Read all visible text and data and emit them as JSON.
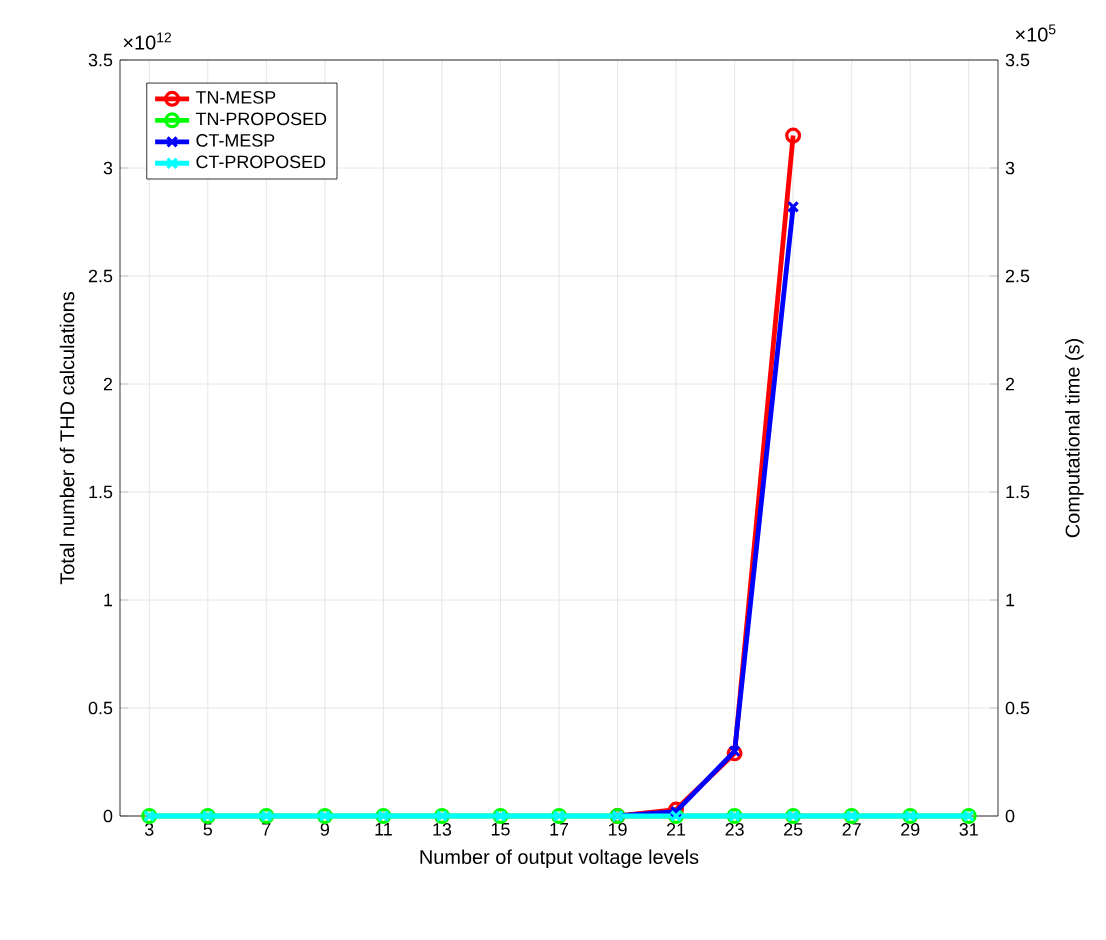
{
  "chart_data": {
    "type": "line",
    "xlabel": "Number of output voltage levels",
    "ylabel": "Total number of THD calculations",
    "y2label": "Computational time (s)",
    "annotations": [
      "×10$^{12}$",
      "×10$^{5}$"
    ],
    "x": [
      3,
      5,
      7,
      9,
      11,
      13,
      15,
      17,
      19,
      21,
      23,
      25,
      27,
      29,
      31
    ],
    "xlim": [
      2,
      32
    ],
    "xticks": [
      3,
      5,
      7,
      9,
      11,
      13,
      15,
      17,
      19,
      21,
      23,
      25,
      27,
      29,
      31
    ],
    "ylim": [
      0,
      3.5
    ],
    "yticks": [
      0,
      0.5,
      1,
      1.5,
      2,
      2.5,
      3,
      3.5
    ],
    "y2lim": [
      0,
      3.5
    ],
    "y2ticks": [
      0,
      0.5,
      1,
      1.5,
      2,
      2.5,
      3,
      3.5
    ],
    "grid": true,
    "legend": "top left",
    "series": [
      {
        "name": "TN-MESP",
        "color": "#ff0000",
        "marker": "circle",
        "values": [
          null,
          null,
          null,
          null,
          null,
          null,
          null,
          null,
          0,
          0.03,
          0.29,
          3.15,
          null,
          null,
          null
        ]
      },
      {
        "name": "TN-PROPOSED",
        "color": "#00ff00",
        "marker": "circle",
        "values": [
          0,
          0,
          0,
          0,
          0,
          0,
          0,
          0,
          0,
          0,
          0,
          0,
          0,
          0,
          0
        ]
      },
      {
        "name": "CT-MESP",
        "color": "#0000ff",
        "marker": "cross",
        "axis": "y2",
        "values": [
          null,
          null,
          null,
          null,
          null,
          null,
          null,
          null,
          0,
          0.02,
          0.3,
          2.82,
          null,
          null,
          null
        ]
      },
      {
        "name": "CT-PROPOSED",
        "color": "#00ffff",
        "marker": "cross",
        "axis": "y2",
        "values": [
          0,
          0,
          0,
          0,
          0,
          0,
          0,
          0,
          0,
          0,
          0,
          0,
          0,
          0,
          0
        ]
      }
    ]
  }
}
